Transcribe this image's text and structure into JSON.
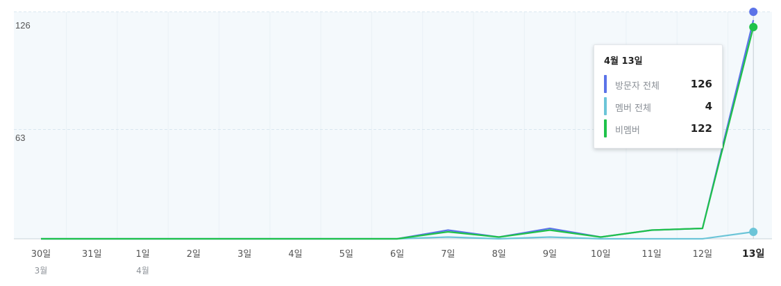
{
  "chart_data": {
    "type": "line",
    "x": [
      "30일",
      "31일",
      "1일",
      "2일",
      "3일",
      "4일",
      "5일",
      "6일",
      "7일",
      "8일",
      "9일",
      "10일",
      "11일",
      "12일",
      "13일"
    ],
    "x_month_labels": [
      {
        "index": 0,
        "label": "3월"
      },
      {
        "index": 2,
        "label": "4월"
      }
    ],
    "highlight_index": 14,
    "yticks": [
      63,
      126
    ],
    "ylim": [
      0,
      126
    ],
    "grid": true,
    "series": [
      {
        "name": "방문자 전체",
        "color": "#5b73e8",
        "values": [
          0,
          0,
          0,
          0,
          0,
          0,
          0,
          0,
          5,
          1,
          6,
          1,
          5,
          6,
          126
        ]
      },
      {
        "name": "멤버 전체",
        "color": "#6cc5d8",
        "values": [
          0,
          0,
          0,
          0,
          0,
          0,
          0,
          0,
          1,
          0,
          1,
          0,
          0,
          0,
          4
        ]
      },
      {
        "name": "비멤버",
        "color": "#1fc24a",
        "values": [
          0,
          0,
          0,
          0,
          0,
          0,
          0,
          0,
          4,
          1,
          5,
          1,
          5,
          6,
          122
        ]
      }
    ]
  },
  "tooltip": {
    "title": "4월 13일",
    "rows": [
      {
        "label": "방문자 전체",
        "value": "126"
      },
      {
        "label": "멤버 전체",
        "value": "4"
      },
      {
        "label": "비멤버",
        "value": "122"
      }
    ]
  }
}
